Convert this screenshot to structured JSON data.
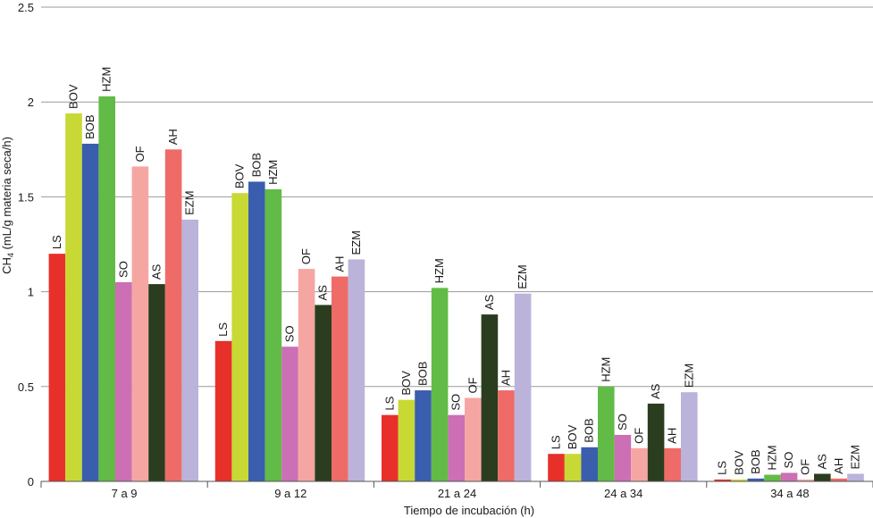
{
  "chart_data": {
    "type": "bar",
    "xlabel": "Tiempo de incubación (h)",
    "ylabel_main": "CH",
    "ylabel_sub": "4",
    "ylabel_rest": " (mL/g materia seca/h)",
    "ylim": [
      0,
      2.5
    ],
    "yticks": [
      "0",
      "0.5",
      "1",
      "1.5",
      "2",
      "2.5"
    ],
    "grid": true,
    "categories": [
      "7 a 9",
      "9 a 12",
      "21 a 24",
      "24 a 34",
      "34 a 48"
    ],
    "series": [
      {
        "name": "LS",
        "color": "#e8302a",
        "values": [
          1.2,
          0.74,
          0.35,
          0.145,
          0.01
        ]
      },
      {
        "name": "BOV",
        "color": "#c8d935",
        "values": [
          1.94,
          1.52,
          0.43,
          0.145,
          0.01
        ]
      },
      {
        "name": "BOB",
        "color": "#3a5ead",
        "values": [
          1.78,
          1.58,
          0.48,
          0.18,
          0.015
        ]
      },
      {
        "name": "HZM",
        "color": "#62bb46",
        "values": [
          2.03,
          1.54,
          1.02,
          0.5,
          0.035
        ]
      },
      {
        "name": "SO",
        "color": "#cc6fb5",
        "values": [
          1.05,
          0.71,
          0.35,
          0.245,
          0.045
        ]
      },
      {
        "name": "OF",
        "color": "#f6a6a2",
        "values": [
          1.66,
          1.12,
          0.44,
          0.175,
          0.01
        ]
      },
      {
        "name": "AS",
        "color": "#2b3d1f",
        "values": [
          1.04,
          0.93,
          0.88,
          0.41,
          0.04
        ]
      },
      {
        "name": "AH",
        "color": "#ef6b68",
        "values": [
          1.75,
          1.08,
          0.48,
          0.175,
          0.015
        ]
      },
      {
        "name": "EZM",
        "color": "#bbb3da",
        "values": [
          1.38,
          1.17,
          0.99,
          0.47,
          0.04
        ]
      }
    ]
  }
}
